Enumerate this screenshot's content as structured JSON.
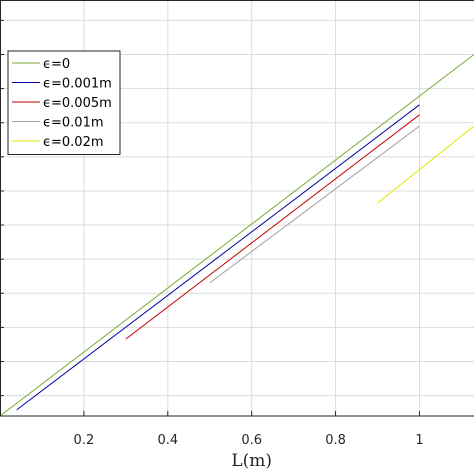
{
  "chart_data": {
    "type": "line",
    "xlabel": "L(m)",
    "ylabel": "",
    "title": "",
    "xlim": [
      0.0,
      1.13
    ],
    "x_ticks": [
      0.2,
      0.4,
      0.6,
      0.8,
      1.0
    ],
    "x_tick_labels": [
      "0.2",
      "0.4",
      "0.6",
      "0.8",
      "1"
    ],
    "ylim": [
      0.0,
      1.0
    ],
    "y_gridlines": [
      0.049,
      0.131,
      0.213,
      0.295,
      0.377,
      0.459,
      0.541,
      0.623,
      0.705,
      0.787,
      0.869,
      0.951
    ],
    "grid": true,
    "legend_position": "top-left",
    "series": [
      {
        "name": "ϵ=0",
        "color": "#77AC30",
        "x": [
          0.0,
          1.13
        ],
        "y": [
          0.0,
          0.869
        ]
      },
      {
        "name": "ϵ=0.001m",
        "color": "#0000A0",
        "x": [
          0.04,
          1.0
        ],
        "y": [
          0.015,
          0.748
        ]
      },
      {
        "name": "ϵ=0.005m",
        "color": "#C00000",
        "x": [
          0.3,
          1.0
        ],
        "y": [
          0.185,
          0.724
        ]
      },
      {
        "name": "ϵ=0.01m",
        "color": "#A0A0A0",
        "x": [
          0.5,
          1.0
        ],
        "y": [
          0.32,
          0.697
        ]
      },
      {
        "name": "ϵ=0.02m",
        "color": "#E6E600",
        "x": [
          0.9,
          1.13
        ],
        "y": [
          0.512,
          0.697
        ]
      }
    ]
  }
}
